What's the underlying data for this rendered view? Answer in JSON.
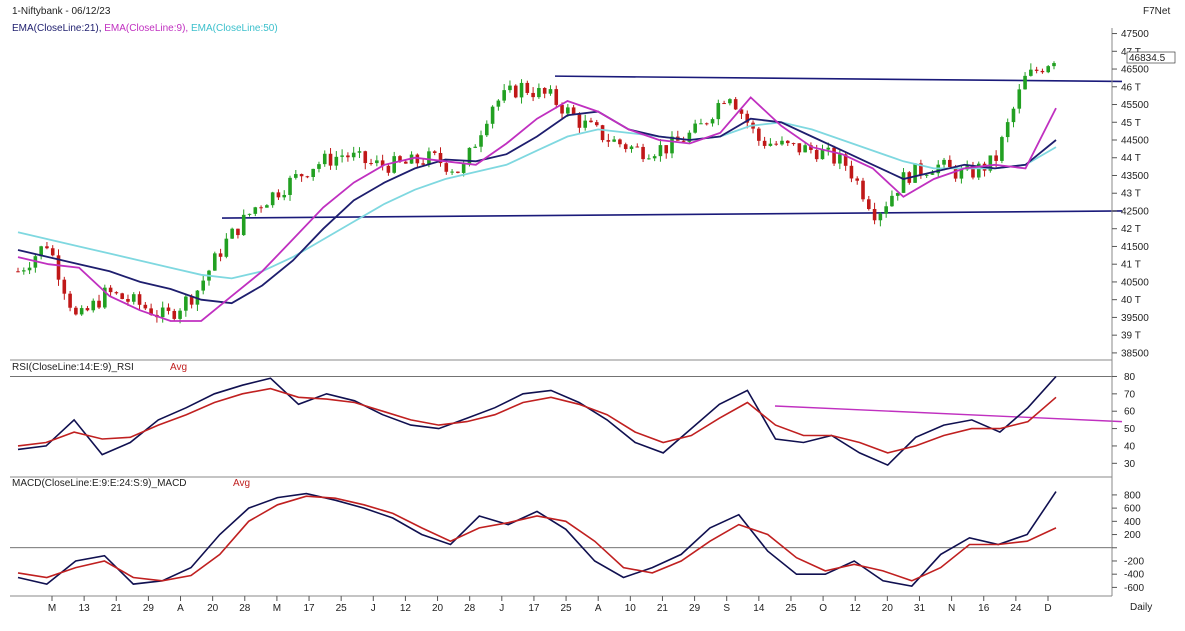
{
  "header": {
    "symbol": "1-Niftybank - 06/12/23",
    "vendor": "F7Net",
    "ema21": "EMA(CloseLine:21),",
    "ema9": "EMA(CloseLine:9),",
    "ema50": "EMA(CloseLine:50)",
    "last_price": "46834.5",
    "x_axis_mode": "Daily"
  },
  "colors": {
    "candle_up": "#22a022",
    "candle_down": "#c01818",
    "ema21": "#1e1e6e",
    "ema9": "#c030c0",
    "ema50": "#7fd8e0",
    "rsi": "#101050",
    "rsi_avg": "#c02020",
    "macd": "#101050",
    "macd_avg": "#c02020",
    "trendline": "#1a1a7a",
    "rsi_trendline": "#c030c0"
  },
  "chart_data": [
    {
      "type": "candlestick",
      "panel": "price",
      "title": "1-Niftybank - 06/12/23",
      "series": [
        {
          "name": "EMA(CloseLine:21)",
          "values": [
            41400,
            41200,
            41000,
            40800,
            40500,
            40300,
            40000,
            39900,
            40400,
            41100,
            42000,
            42800,
            43300,
            43700,
            43950,
            43900,
            44100,
            44600,
            45200,
            45300,
            44800,
            44600,
            44500,
            44600,
            45100,
            45000,
            44600,
            44200,
            43800,
            43400,
            43600,
            43800,
            43700,
            43800,
            44500
          ]
        },
        {
          "name": "EMA(CloseLine:9)",
          "values": [
            41200,
            41000,
            40900,
            40100,
            39700,
            39400,
            39400,
            40100,
            40800,
            41700,
            42600,
            43300,
            43800,
            44000,
            43900,
            43800,
            44400,
            45100,
            45600,
            45300,
            44800,
            44500,
            44400,
            44700,
            45700,
            44900,
            44300,
            44100,
            43700,
            42900,
            43400,
            43700,
            43800,
            43700,
            45400
          ]
        },
        {
          "name": "EMA(CloseLine:50)",
          "values": [
            41900,
            41700,
            41500,
            41300,
            41100,
            40900,
            40700,
            40600,
            40800,
            41200,
            41700,
            42200,
            42700,
            43100,
            43400,
            43600,
            43800,
            44200,
            44600,
            44800,
            44700,
            44600,
            44500,
            44600,
            44900,
            45000,
            44800,
            44500,
            44200,
            43900,
            43700,
            43700,
            43700,
            43800,
            44300
          ]
        }
      ],
      "ohlc_closes": [
        40800,
        41600,
        39400,
        40200,
        39900,
        39500,
        40200,
        41600,
        42600,
        43200,
        43800,
        44100,
        43800,
        43800,
        44000,
        43600,
        45500,
        46000,
        45700,
        45000,
        44500,
        44200,
        44300,
        44800,
        45900,
        44500,
        44300,
        44200,
        43800,
        42400,
        43500,
        43800,
        43500,
        43900,
        46200,
        46834.5
      ],
      "trendlines": [
        {
          "from": 46300,
          "to": 46150
        },
        {
          "from": 42300,
          "to": 42500
        }
      ],
      "ylim": [
        38300,
        47600
      ],
      "yticks": [
        "47500",
        "47 T",
        "46500",
        "46 T",
        "45500",
        "45 T",
        "44500",
        "44 T",
        "43500",
        "43 T",
        "42500",
        "42 T",
        "41500",
        "41 T",
        "40500",
        "40 T",
        "39500",
        "39 T",
        "38500"
      ]
    },
    {
      "type": "line",
      "panel": "rsi",
      "title": "RSI(CloseLine:14:E:9)_RSI",
      "series": [
        {
          "name": "RSI",
          "values": [
            38,
            40,
            55,
            35,
            42,
            55,
            62,
            70,
            75,
            79,
            64,
            70,
            66,
            58,
            52,
            50,
            56,
            62,
            70,
            72,
            65,
            55,
            42,
            36,
            50,
            64,
            72,
            44,
            42,
            46,
            36,
            29,
            45,
            52,
            55,
            48,
            62,
            80
          ]
        },
        {
          "name": "Avg",
          "values": [
            40,
            42,
            48,
            44,
            45,
            52,
            58,
            65,
            70,
            73,
            68,
            67,
            65,
            60,
            55,
            52,
            54,
            58,
            65,
            68,
            64,
            58,
            48,
            42,
            46,
            56,
            65,
            52,
            46,
            46,
            42,
            36,
            40,
            46,
            50,
            50,
            54,
            68
          ]
        }
      ],
      "avg_label": "Avg",
      "trendline": {
        "from": 63,
        "to": 54
      },
      "ylim": [
        25,
        82
      ],
      "yticks": [
        "80",
        "70",
        "60",
        "50",
        "40",
        "30"
      ]
    },
    {
      "type": "line",
      "panel": "macd",
      "title": "MACD(CloseLine:E:9:E:24:S:9)_MACD",
      "series": [
        {
          "name": "MACD",
          "values": [
            -450,
            -550,
            -200,
            -120,
            -550,
            -500,
            -300,
            200,
            600,
            760,
            820,
            720,
            600,
            450,
            200,
            50,
            480,
            350,
            550,
            280,
            -200,
            -450,
            -300,
            -100,
            300,
            500,
            -50,
            -400,
            -400,
            -200,
            -500,
            -580,
            -100,
            150,
            50,
            200,
            850
          ]
        },
        {
          "name": "Avg",
          "values": [
            -380,
            -450,
            -300,
            -200,
            -450,
            -500,
            -420,
            -100,
            400,
            650,
            780,
            750,
            650,
            520,
            300,
            100,
            300,
            380,
            480,
            400,
            100,
            -300,
            -380,
            -200,
            100,
            350,
            200,
            -150,
            -350,
            -250,
            -350,
            -500,
            -300,
            50,
            50,
            100,
            300
          ]
        }
      ],
      "avg_label": "Avg",
      "ylim": [
        -700,
        950
      ],
      "yticks": [
        "800",
        "600",
        "400",
        "200",
        "0",
        "-200",
        "-400",
        "-600"
      ]
    }
  ],
  "x_axis": {
    "labels": [
      "M",
      "13",
      "21",
      "29",
      "A",
      "20",
      "28",
      "M",
      "17",
      "25",
      "J",
      "12",
      "20",
      "28",
      "J",
      "17",
      "25",
      "A",
      "10",
      "21",
      "29",
      "S",
      "14",
      "25",
      "O",
      "12",
      "20",
      "31",
      "N",
      "16",
      "24",
      "D"
    ]
  }
}
